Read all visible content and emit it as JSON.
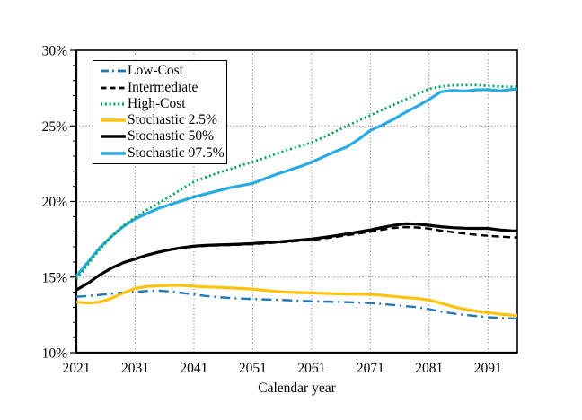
{
  "chart_data": {
    "type": "line",
    "title": "",
    "xlabel": "Calendar year",
    "ylabel": "",
    "x_range": [
      2021,
      2096
    ],
    "y_range": [
      10,
      30
    ],
    "x_ticks": [
      2021,
      2031,
      2041,
      2051,
      2061,
      2071,
      2081,
      2091
    ],
    "y_ticks": [
      {
        "value": 10,
        "label": "10%"
      },
      {
        "value": 15,
        "label": "15%"
      },
      {
        "value": 20,
        "label": "20%"
      },
      {
        "value": 25,
        "label": "25%"
      },
      {
        "value": 30,
        "label": "30%"
      }
    ],
    "y_minor_tick_step": 1,
    "grid": true,
    "legend_position": "top-left-inside",
    "years": [
      2021,
      2023,
      2025,
      2027,
      2029,
      2031,
      2033,
      2035,
      2037,
      2039,
      2041,
      2043,
      2045,
      2047,
      2049,
      2051,
      2053,
      2055,
      2057,
      2059,
      2061,
      2063,
      2065,
      2067,
      2069,
      2071,
      2073,
      2075,
      2077,
      2079,
      2081,
      2083,
      2085,
      2087,
      2089,
      2091,
      2093,
      2095,
      2096
    ],
    "series": [
      {
        "name": "Low-Cost",
        "color": "#1f77b4",
        "style": "dash-dot",
        "width": 2.4,
        "values": [
          13.7,
          13.75,
          13.82,
          13.9,
          13.97,
          14.02,
          14.08,
          14.1,
          14.05,
          13.95,
          13.85,
          13.75,
          13.68,
          13.62,
          13.58,
          13.55,
          13.52,
          13.5,
          13.47,
          13.43,
          13.4,
          13.38,
          13.36,
          13.34,
          13.32,
          13.28,
          13.22,
          13.15,
          13.08,
          13.0,
          12.88,
          12.72,
          12.6,
          12.5,
          12.42,
          12.35,
          12.3,
          12.27,
          12.25
        ]
      },
      {
        "name": "Intermediate",
        "color": "#000000",
        "style": "dashed",
        "width": 2.4,
        "values": [
          14.15,
          14.6,
          15.15,
          15.6,
          15.95,
          16.2,
          16.45,
          16.65,
          16.8,
          16.92,
          17.02,
          17.07,
          17.1,
          17.12,
          17.15,
          17.18,
          17.23,
          17.28,
          17.33,
          17.4,
          17.46,
          17.55,
          17.65,
          17.76,
          17.88,
          18.0,
          18.13,
          18.25,
          18.3,
          18.28,
          18.2,
          18.08,
          17.97,
          17.88,
          17.8,
          17.73,
          17.68,
          17.63,
          17.62
        ]
      },
      {
        "name": "High-Cost",
        "color": "#00a651",
        "style": "dotted",
        "width": 2.8,
        "values": [
          14.88,
          15.85,
          16.85,
          17.7,
          18.4,
          18.95,
          19.45,
          19.9,
          20.35,
          20.85,
          21.3,
          21.6,
          21.88,
          22.12,
          22.38,
          22.62,
          22.88,
          23.15,
          23.42,
          23.65,
          23.9,
          24.25,
          24.62,
          25.0,
          25.35,
          25.7,
          26.05,
          26.4,
          26.75,
          27.1,
          27.45,
          27.6,
          27.68,
          27.7,
          27.7,
          27.65,
          27.6,
          27.58,
          27.58
        ]
      },
      {
        "name": "Stochastic 2.5%",
        "color": "#ffc20e",
        "style": "solid",
        "width": 3.2,
        "values": [
          13.35,
          13.28,
          13.35,
          13.6,
          13.95,
          14.25,
          14.38,
          14.42,
          14.45,
          14.45,
          14.4,
          14.35,
          14.32,
          14.28,
          14.25,
          14.2,
          14.12,
          14.05,
          14.0,
          13.97,
          13.95,
          13.92,
          13.9,
          13.88,
          13.87,
          13.85,
          13.8,
          13.72,
          13.65,
          13.58,
          13.48,
          13.28,
          13.05,
          12.88,
          12.75,
          12.65,
          12.55,
          12.48,
          12.45
        ]
      },
      {
        "name": "Stochastic 50%",
        "color": "#000000",
        "style": "solid",
        "width": 3.2,
        "values": [
          14.15,
          14.6,
          15.15,
          15.6,
          15.95,
          16.2,
          16.45,
          16.65,
          16.82,
          16.95,
          17.05,
          17.1,
          17.13,
          17.15,
          17.18,
          17.22,
          17.28,
          17.32,
          17.38,
          17.45,
          17.52,
          17.62,
          17.73,
          17.85,
          17.98,
          18.12,
          18.28,
          18.42,
          18.52,
          18.5,
          18.42,
          18.33,
          18.27,
          18.23,
          18.22,
          18.22,
          18.12,
          18.06,
          18.05
        ]
      },
      {
        "name": "Stochastic 97.5%",
        "color": "#29abe2",
        "style": "solid",
        "width": 3.2,
        "values": [
          15.05,
          16.0,
          16.95,
          17.7,
          18.35,
          18.85,
          19.2,
          19.55,
          19.8,
          20.05,
          20.3,
          20.5,
          20.7,
          20.9,
          21.05,
          21.2,
          21.5,
          21.8,
          22.05,
          22.3,
          22.6,
          22.95,
          23.3,
          23.6,
          24.1,
          24.7,
          25.05,
          25.45,
          25.9,
          26.3,
          26.75,
          27.25,
          27.35,
          27.3,
          27.38,
          27.4,
          27.32,
          27.4,
          27.45
        ]
      }
    ],
    "colors": {
      "grid": "#6e6e6e",
      "axis": "#000000",
      "background": "#ffffff"
    }
  }
}
